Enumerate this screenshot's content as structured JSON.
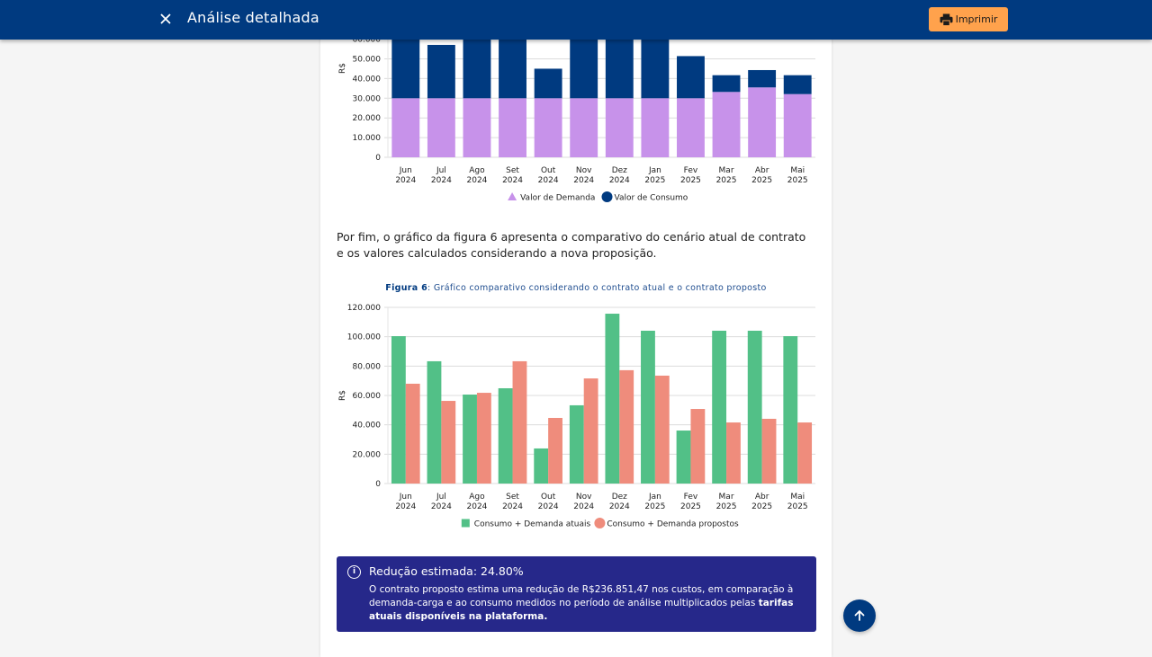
{
  "header": {
    "title": "Análise detalhada",
    "close_icon": "close-icon",
    "print_label": "Imprimir",
    "print_icon": "printer-icon"
  },
  "paragraph": "Por fim, o gráfico da figura 6 apresenta o comparativo do cenário atual de contrato e os valores calculados considerando a nova proposição.",
  "figure6": {
    "label": "Figura 6",
    "caption": ": Gráfico comparativo considerando o contrato atual e o contrato proposto"
  },
  "info_box": {
    "icon": "info-icon",
    "title": "Redução estimada: 24.80%",
    "text_plain": "O contrato proposto estima uma redução de R$236.851,47 nos custos, em comparação à demanda-carga e ao consumo medidos no período de análise multiplicados pelas ",
    "text_bold": "tarifas atuais disponíveis na plataforma."
  },
  "scroll_top_icon": "arrow-up-icon",
  "colors": {
    "header": "#003a80",
    "demanda": "#c792ea",
    "consumo": "#003a80",
    "atuais": "#52c087",
    "propostos": "#ef8c7c",
    "info_bg": "#26288a",
    "print_button": "#ffa24c"
  },
  "chart_data": [
    {
      "type": "bar",
      "stacked": true,
      "title": "",
      "ylabel": "R$",
      "xlabel": "",
      "ylim": [
        0,
        60000
      ],
      "yticks": [
        "0",
        "10.000",
        "20.000",
        "30.000",
        "40.000",
        "50.000",
        "60.000"
      ],
      "categories": [
        [
          "Jun",
          "2024"
        ],
        [
          "Jul",
          "2024"
        ],
        [
          "Ago",
          "2024"
        ],
        [
          "Set",
          "2024"
        ],
        [
          "Out",
          "2024"
        ],
        [
          "Nov",
          "2024"
        ],
        [
          "Dez",
          "2024"
        ],
        [
          "Jan",
          "2025"
        ],
        [
          "Fev",
          "2025"
        ],
        [
          "Mar",
          "2025"
        ],
        [
          "Abr",
          "2025"
        ],
        [
          "Mai",
          "2025"
        ]
      ],
      "series": [
        {
          "name": "Valor de Demanda",
          "marker": "triangle",
          "values": [
            30000,
            30000,
            30000,
            30000,
            30000,
            30000,
            30000,
            30000,
            30000,
            33200,
            35500,
            32100
          ]
        },
        {
          "name": "Valor de Consumo",
          "marker": "circle",
          "values": [
            38000,
            27100,
            31800,
            53300,
            15000,
            41600,
            47200,
            43500,
            21400,
            8500,
            8800,
            9600
          ]
        }
      ],
      "legend": "bottom",
      "grid": true
    },
    {
      "type": "bar",
      "title": "Figura 6: Gráfico comparativo considerando o contrato atual e o contrato proposto",
      "ylabel": "R$",
      "xlabel": "",
      "ylim": [
        0,
        120000
      ],
      "yticks": [
        "0",
        "20.000",
        "40.000",
        "60.000",
        "80.000",
        "100.000",
        "120.000"
      ],
      "categories": [
        [
          "Jun",
          "2024"
        ],
        [
          "Jul",
          "2024"
        ],
        [
          "Ago",
          "2024"
        ],
        [
          "Set",
          "2024"
        ],
        [
          "Out",
          "2024"
        ],
        [
          "Nov",
          "2024"
        ],
        [
          "Dez",
          "2024"
        ],
        [
          "Jan",
          "2025"
        ],
        [
          "Fev",
          "2025"
        ],
        [
          "Mar",
          "2025"
        ],
        [
          "Abr",
          "2025"
        ],
        [
          "Mai",
          "2025"
        ]
      ],
      "series": [
        {
          "name": "Consumo + Demanda atuais",
          "marker": "square",
          "values": [
            100400,
            83300,
            60600,
            64900,
            23900,
            53300,
            115700,
            104100,
            36100,
            104100,
            104100,
            100400
          ]
        },
        {
          "name": "Consumo + Demanda propostos",
          "marker": "circle",
          "values": [
            68000,
            56300,
            61800,
            83300,
            44700,
            71600,
            77200,
            73500,
            50800,
            41600,
            44100,
            41600
          ]
        }
      ],
      "legend": "bottom",
      "grid": true
    }
  ]
}
